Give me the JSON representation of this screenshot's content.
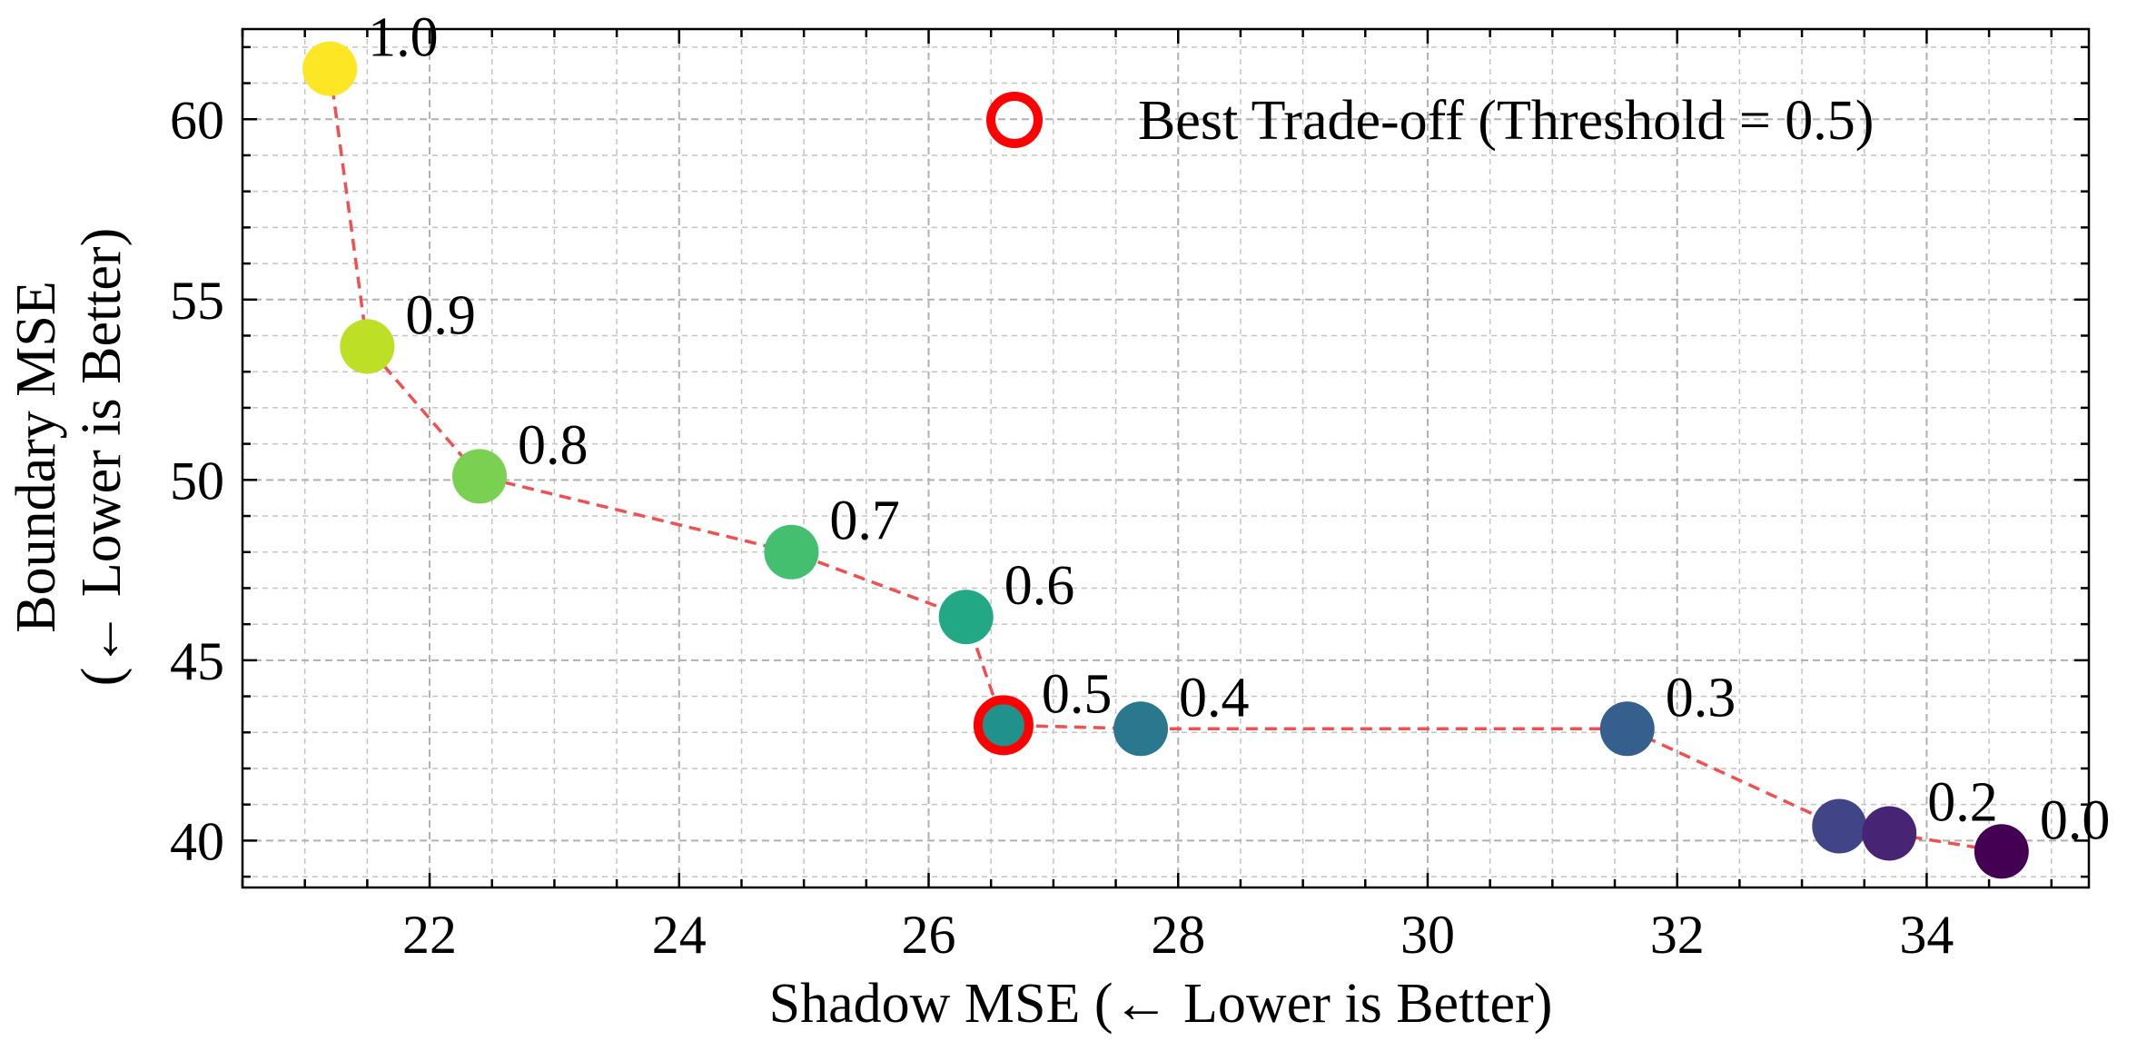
{
  "chart_data": {
    "type": "scatter",
    "xlabel": "Shadow MSE (← Lower is Better)",
    "ylabel_lines": [
      "Boundary MSE",
      "(← Lower is Better)"
    ],
    "xlim": [
      20.5,
      35.3
    ],
    "ylim": [
      38.7,
      62.5
    ],
    "xticks": [
      22,
      24,
      26,
      28,
      30,
      32,
      34
    ],
    "yticks": [
      40,
      45,
      50,
      55,
      60
    ],
    "grid": true,
    "legend_position": "top-right",
    "line_color": "#f05050",
    "highlight_color": "#ff0000",
    "points": [
      {
        "label": "1.0",
        "x": 21.2,
        "y": 61.4,
        "color": "#fde725"
      },
      {
        "label": "0.9",
        "x": 21.5,
        "y": 53.7,
        "color": "#bddf26"
      },
      {
        "label": "0.8",
        "x": 22.4,
        "y": 50.1,
        "color": "#7ad151"
      },
      {
        "label": "0.7",
        "x": 24.9,
        "y": 48.0,
        "color": "#44bf70"
      },
      {
        "label": "0.6",
        "x": 26.3,
        "y": 46.2,
        "color": "#22a884"
      },
      {
        "label": "0.5",
        "x": 26.6,
        "y": 43.2,
        "color": "#21918c"
      },
      {
        "label": "0.4",
        "x": 27.7,
        "y": 43.1,
        "color": "#2a788e"
      },
      {
        "label": "0.3",
        "x": 31.6,
        "y": 43.1,
        "color": "#355f8d"
      },
      {
        "label": "",
        "x": 33.3,
        "y": 40.4,
        "color": "#414487"
      },
      {
        "label": "0.2",
        "x": 33.7,
        "y": 40.2,
        "color": "#482475"
      },
      {
        "label": "0.0",
        "x": 34.6,
        "y": 39.7,
        "color": "#440154"
      }
    ],
    "highlight": {
      "x": 26.6,
      "y": 43.2
    },
    "legend": [
      {
        "label": "Best Trade-off (Threshold = 0.5)"
      }
    ]
  }
}
